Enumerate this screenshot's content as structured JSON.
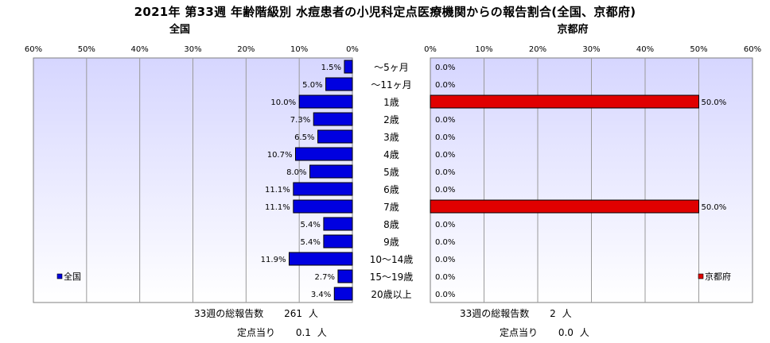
{
  "title": "2021年 第33週 年齢階級別 水痘患者の小児科定点医療機関からの報告割合(全国、京都府)",
  "colors": {
    "national": "#0000e0",
    "kyoto": "#e00000",
    "plot_bg_top": "#d6d6ff",
    "plot_bg_bottom": "#ffffff",
    "grid": "#9a9a9a"
  },
  "age_groups": [
    "～5ヶ月",
    "～11ヶ月",
    "1歳",
    "2歳",
    "3歳",
    "4歳",
    "5歳",
    "6歳",
    "7歳",
    "8歳",
    "9歳",
    "10～14歳",
    "15～19歳",
    "20歳以上"
  ],
  "national": {
    "panel_title": "全国",
    "legend": "全国",
    "footer": {
      "total_label": "33週の総報告数",
      "total_value": "261",
      "total_unit": "人",
      "per_label": "定点当り",
      "per_value": "0.1",
      "per_unit": "人"
    }
  },
  "kyoto": {
    "panel_title": "京都府",
    "legend": "京都府",
    "footer": {
      "total_label": "33週の総報告数",
      "total_value": "2",
      "total_unit": "人",
      "per_label": "定点当り",
      "per_value": "0.0",
      "per_unit": "人"
    }
  },
  "chart_data": [
    {
      "type": "bar",
      "orientation": "horizontal",
      "direction": "right-to-left",
      "categories": [
        "～5ヶ月",
        "～11ヶ月",
        "1歳",
        "2歳",
        "3歳",
        "4歳",
        "5歳",
        "6歳",
        "7歳",
        "8歳",
        "9歳",
        "10～14歳",
        "15～19歳",
        "20歳以上"
      ],
      "series": [
        {
          "name": "全国",
          "values": [
            1.5,
            5.0,
            10.0,
            7.3,
            6.5,
            10.7,
            8.0,
            11.1,
            11.1,
            5.4,
            5.4,
            11.9,
            2.7,
            3.4
          ]
        }
      ],
      "data_labels": [
        "1.5%",
        "5.0%",
        "10.0%",
        "7.3%",
        "6.5%",
        "10.7%",
        "8.0%",
        "11.1%",
        "11.1%",
        "5.4%",
        "5.4%",
        "11.9%",
        "2.7%",
        "3.4%"
      ],
      "xlim": [
        0,
        60
      ],
      "xticks": [
        "0%",
        "10%",
        "20%",
        "30%",
        "40%",
        "50%",
        "60%"
      ],
      "grid": true,
      "legend_position": "bottom-left"
    },
    {
      "type": "bar",
      "orientation": "horizontal",
      "direction": "left-to-right",
      "categories": [
        "～5ヶ月",
        "～11ヶ月",
        "1歳",
        "2歳",
        "3歳",
        "4歳",
        "5歳",
        "6歳",
        "7歳",
        "8歳",
        "9歳",
        "10～14歳",
        "15～19歳",
        "20歳以上"
      ],
      "series": [
        {
          "name": "京都府",
          "values": [
            0,
            0,
            50.0,
            0,
            0,
            0,
            0,
            0,
            50.0,
            0,
            0,
            0,
            0,
            0
          ]
        }
      ],
      "data_labels": [
        "0.0%",
        "0.0%",
        "50.0%",
        "0.0%",
        "0.0%",
        "0.0%",
        "0.0%",
        "0.0%",
        "50.0%",
        "0.0%",
        "0.0%",
        "0.0%",
        "0.0%",
        "0.0%"
      ],
      "xlim": [
        0,
        60
      ],
      "xticks": [
        "0%",
        "10%",
        "20%",
        "30%",
        "40%",
        "50%",
        "60%"
      ],
      "grid": true,
      "legend_position": "bottom-right"
    }
  ]
}
